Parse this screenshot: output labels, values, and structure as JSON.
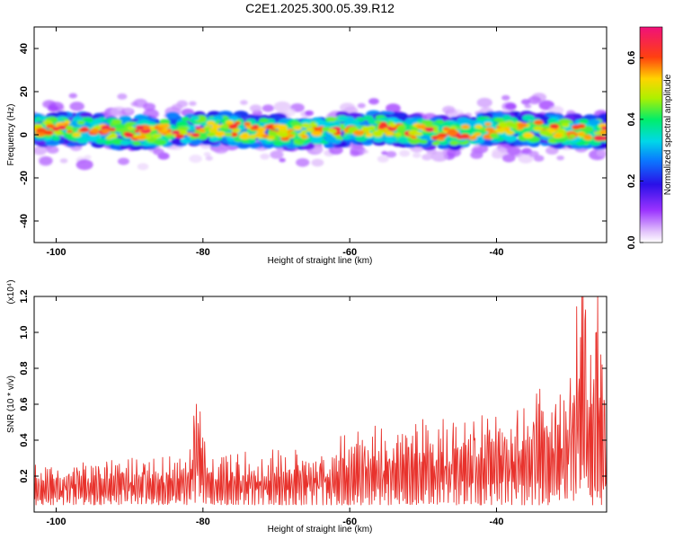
{
  "chart_data": [
    {
      "type": "heatmap",
      "title": "C2E1.2025.300.05.39.R12",
      "xlabel": "Height of straight line (km)",
      "ylabel": "Frequency (Hz)",
      "xlim": [
        -103,
        -25
      ],
      "ylim": [
        -50,
        50
      ],
      "xticks": [
        -100,
        -80,
        -60,
        -40
      ],
      "yticks": [
        -40,
        -20,
        0,
        20,
        40
      ],
      "band_center_hz": 2,
      "band_halfwidth_hz": 7,
      "colorbar": {
        "label": "Normalized spectral amplitude",
        "range": [
          0.0,
          0.7
        ],
        "ticks": [
          0.0,
          0.2,
          0.4,
          0.6
        ],
        "colormap": "rainbow (white→purple→blue→cyan→green→yellow→red→magenta)"
      }
    },
    {
      "type": "line",
      "xlabel": "Height of straight line (km)",
      "ylabel": "SNR (10 * v/v)",
      "scale_label": "(x10⁴)",
      "xlim": [
        -103,
        -25
      ],
      "ylim": [
        0,
        1.2
      ],
      "xticks": [
        -100,
        -80,
        -60,
        -40
      ],
      "yticks": [
        0.2,
        0.4,
        0.6,
        0.8,
        1.0,
        1.2
      ],
      "series": [
        {
          "name": "SNR",
          "color": "#e8322c",
          "x": [
            -103,
            -100,
            -97,
            -94,
            -91,
            -88,
            -85,
            -82,
            -80.9,
            -79,
            -76,
            -73,
            -70,
            -67,
            -64,
            -61,
            -58,
            -55,
            -52,
            -49,
            -46,
            -43,
            -41,
            -38,
            -35,
            -32,
            -30,
            -28.4,
            -27,
            -26.4,
            -25
          ],
          "values": [
            0.17,
            0.19,
            0.2,
            0.21,
            0.22,
            0.21,
            0.22,
            0.22,
            0.6,
            0.22,
            0.22,
            0.23,
            0.25,
            0.26,
            0.27,
            0.3,
            0.33,
            0.34,
            0.36,
            0.38,
            0.39,
            0.4,
            0.42,
            0.46,
            0.5,
            0.52,
            0.55,
            1.22,
            0.6,
            1.0,
            0.4
          ]
        }
      ]
    }
  ]
}
